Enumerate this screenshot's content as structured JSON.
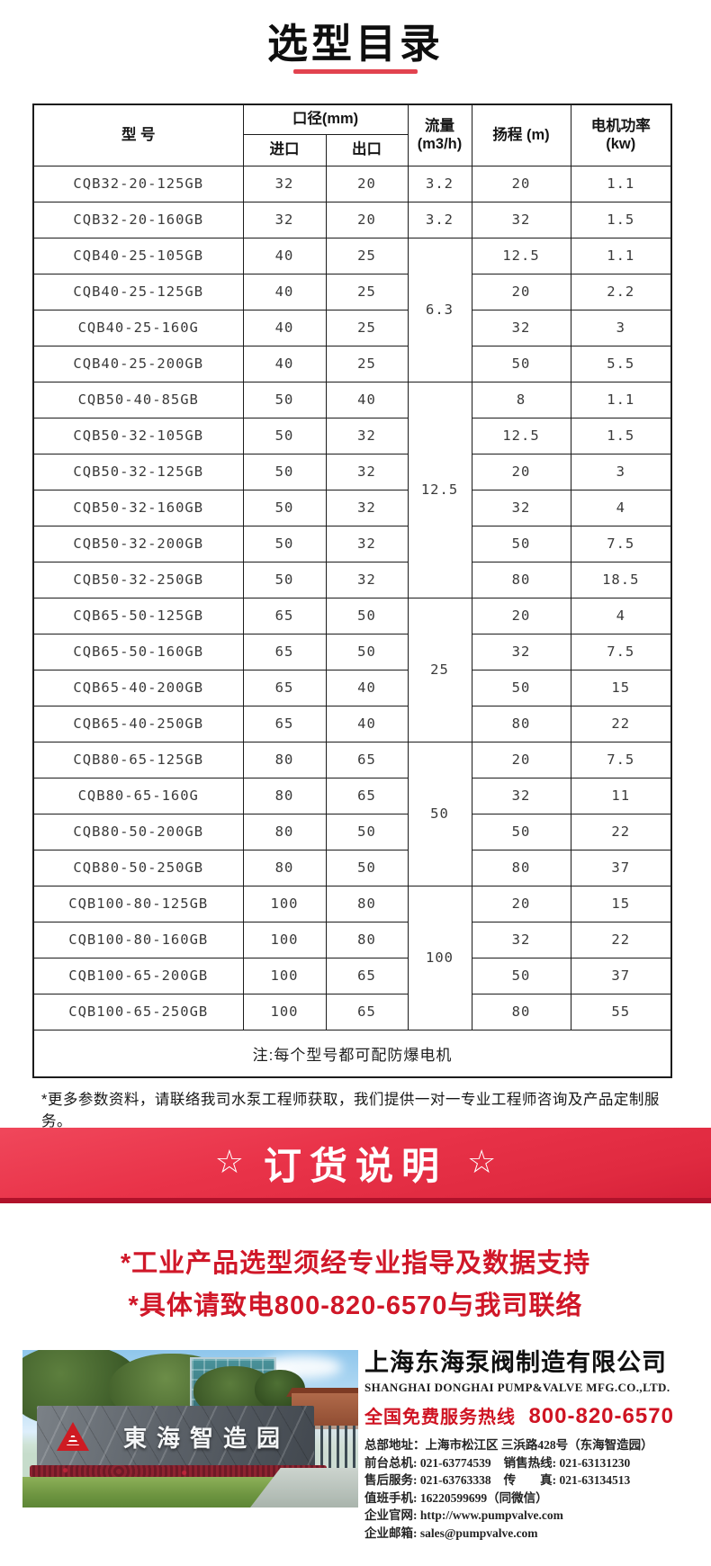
{
  "page": {
    "title": "选型目录",
    "accent_red": "#d01728",
    "divider_color": "#e2434f"
  },
  "table": {
    "header": {
      "model": "型  号",
      "diameter": "口径(mm)",
      "inlet": "进口",
      "outlet": "出口",
      "flow_line1": "流量",
      "flow_line2": "(m3/h)",
      "head": "扬程 (m)",
      "power_line1": "电机功率",
      "power_line2": "(kw)"
    },
    "rows": [
      {
        "model": "CQB32-20-125GB",
        "inlet": "32",
        "outlet": "20",
        "flow": "3.2",
        "flow_span": 1,
        "head": "20",
        "power": "1.1"
      },
      {
        "model": "CQB32-20-160GB",
        "inlet": "32",
        "outlet": "20",
        "flow": "3.2",
        "flow_span": 1,
        "head": "32",
        "power": "1.5"
      },
      {
        "model": "CQB40-25-105GB",
        "inlet": "40",
        "outlet": "25",
        "flow": "6.3",
        "flow_span": 4,
        "head": "12.5",
        "power": "1.1"
      },
      {
        "model": "CQB40-25-125GB",
        "inlet": "40",
        "outlet": "25",
        "head": "20",
        "power": "2.2"
      },
      {
        "model": "CQB40-25-160G",
        "inlet": "40",
        "outlet": "25",
        "head": "32",
        "power": "3"
      },
      {
        "model": "CQB40-25-200GB",
        "inlet": "40",
        "outlet": "25",
        "head": "50",
        "power": "5.5"
      },
      {
        "model": "CQB50-40-85GB",
        "inlet": "50",
        "outlet": "40",
        "flow": "12.5",
        "flow_span": 6,
        "head": "8",
        "power": "1.1"
      },
      {
        "model": "CQB50-32-105GB",
        "inlet": "50",
        "outlet": "32",
        "head": "12.5",
        "power": "1.5"
      },
      {
        "model": "CQB50-32-125GB",
        "inlet": "50",
        "outlet": "32",
        "head": "20",
        "power": "3"
      },
      {
        "model": "CQB50-32-160GB",
        "inlet": "50",
        "outlet": "32",
        "head": "32",
        "power": "4"
      },
      {
        "model": "CQB50-32-200GB",
        "inlet": "50",
        "outlet": "32",
        "head": "50",
        "power": "7.5"
      },
      {
        "model": "CQB50-32-250GB",
        "inlet": "50",
        "outlet": "32",
        "head": "80",
        "power": "18.5"
      },
      {
        "model": "CQB65-50-125GB",
        "inlet": "65",
        "outlet": "50",
        "flow": "25",
        "flow_span": 4,
        "head": "20",
        "power": "4"
      },
      {
        "model": "CQB65-50-160GB",
        "inlet": "65",
        "outlet": "50",
        "head": "32",
        "power": "7.5"
      },
      {
        "model": "CQB65-40-200GB",
        "inlet": "65",
        "outlet": "40",
        "head": "50",
        "power": "15"
      },
      {
        "model": "CQB65-40-250GB",
        "inlet": "65",
        "outlet": "40",
        "head": "80",
        "power": "22"
      },
      {
        "model": "CQB80-65-125GB",
        "inlet": "80",
        "outlet": "65",
        "flow": "50",
        "flow_span": 4,
        "head": "20",
        "power": "7.5"
      },
      {
        "model": "CQB80-65-160G",
        "inlet": "80",
        "outlet": "65",
        "head": "32",
        "power": "11"
      },
      {
        "model": "CQB80-50-200GB",
        "inlet": "80",
        "outlet": "50",
        "head": "50",
        "power": "22"
      },
      {
        "model": "CQB80-50-250GB",
        "inlet": "80",
        "outlet": "50",
        "head": "80",
        "power": "37"
      },
      {
        "model": "CQB100-80-125GB",
        "inlet": "100",
        "outlet": "80",
        "flow": "100",
        "flow_span": 4,
        "head": "20",
        "power": "15"
      },
      {
        "model": "CQB100-80-160GB",
        "inlet": "100",
        "outlet": "80",
        "head": "32",
        "power": "22"
      },
      {
        "model": "CQB100-65-200GB",
        "inlet": "100",
        "outlet": "65",
        "head": "50",
        "power": "37"
      },
      {
        "model": "CQB100-65-250GB",
        "inlet": "100",
        "outlet": "65",
        "head": "80",
        "power": "55"
      }
    ],
    "note": "注:每个型号都可配防爆电机"
  },
  "footnote": "*更多参数资料，请联络我司水泵工程师获取，我们提供一对一专业工程师咨询及产品定制服务。",
  "order_banner": {
    "star_left": "☆",
    "title": "订货说明",
    "star_right": "☆"
  },
  "order_notices": {
    "line1": "*工业产品选型须经专业指导及数据支持",
    "line2": "*具体请致电800-820-6570与我司联络"
  },
  "company": {
    "name_cn": "上海东海泵阀制造有限公司",
    "name_en": "SHANGHAI DONGHAI PUMP&VALVE MFG.CO.,LTD.",
    "hotline_label": "全国免费服务热线",
    "hotline_number": "800-820-6570",
    "contact_lines": [
      [
        {
          "label": "总部地址：",
          "value": "上海市松江区 三浜路428号（东海智造园）"
        }
      ],
      [
        {
          "label": "前台总机: ",
          "value": "021-63774539"
        },
        {
          "label": "销售热线: ",
          "value": "021-63131230"
        }
      ],
      [
        {
          "label": "售后服务: ",
          "value": "021-63763338"
        },
        {
          "label": "传　　真: ",
          "value": "021-63134513"
        }
      ],
      [
        {
          "label": "值班手机: ",
          "value": "16220599699（同微信）"
        }
      ],
      [
        {
          "label": "企业官网: ",
          "value": "http://www.pumpvalve.com"
        }
      ],
      [
        {
          "label": "企业邮箱: ",
          "value": "sales@pumpvalve.com"
        }
      ]
    ]
  },
  "photo": {
    "sign_text": "東海智造园"
  }
}
